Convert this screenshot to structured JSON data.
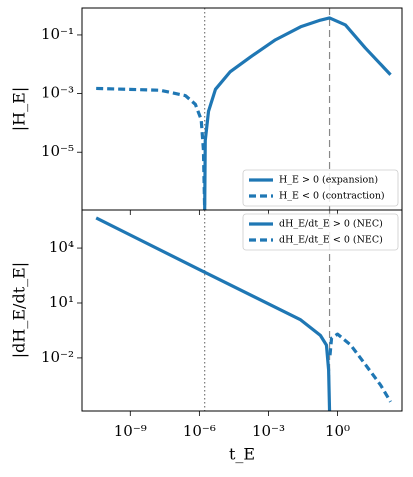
{
  "chart_data": [
    {
      "type": "line",
      "xscale": "log",
      "yscale": "log",
      "ylabel": "|H_E|",
      "xlim": [
        8e-12,
        630
      ],
      "ylim": [
        1.07e-07,
        0.83
      ],
      "xticks": [
        1e-09,
        1e-06,
        0.001,
        1
      ],
      "xtick_labels": false,
      "yticks": [
        {
          "value": 0.1,
          "label": "10⁻¹"
        },
        {
          "value": 0.001,
          "label": "10⁻³"
        },
        {
          "value": 1e-05,
          "label": "10⁻⁵"
        }
      ],
      "vlines": [
        {
          "x": 1.7e-06,
          "style": "dotted",
          "color": "#777777"
        },
        {
          "x": 0.45,
          "style": "dashed",
          "color": "#888888"
        }
      ],
      "legend": "lower right",
      "series": [
        {
          "name": "H_E > 0  (expansion)",
          "color": "#1f77b4",
          "style": "solid",
          "x": [
            1.7e-06,
            1.8e-06,
            2.5e-06,
            5e-06,
            2.2e-05,
            0.00017,
            0.002,
            0.025,
            0.18,
            0.45,
            2.2,
            16,
            200
          ],
          "values": [
            1e-07,
            2.5e-05,
            0.00025,
            0.0014,
            0.0056,
            0.018,
            0.068,
            0.19,
            0.32,
            0.38,
            0.22,
            0.036,
            0.0044
          ]
        },
        {
          "name": "H_E < 0  (contraction)",
          "color": "#1f77b4",
          "style": "dashed",
          "x": [
            3.3e-11,
            2e-08,
            2.5e-07,
            6.7e-07,
            1.2e-06,
            1.5e-06,
            1.7e-06
          ],
          "values": [
            0.0015,
            0.0013,
            0.00085,
            0.00043,
            0.00013,
            1.2e-05,
            1e-07
          ]
        }
      ]
    },
    {
      "type": "line",
      "xscale": "log",
      "yscale": "log",
      "xlabel": "t_E",
      "ylabel": "|dH_E/dt_E|",
      "xlim": [
        8e-12,
        630
      ],
      "ylim": [
        1.26e-05,
        1200000.0
      ],
      "xticks": [
        {
          "value": 1e-09,
          "label": "10⁻⁹"
        },
        {
          "value": 1e-06,
          "label": "10⁻⁶"
        },
        {
          "value": 0.001,
          "label": "10⁻³"
        },
        {
          "value": 1,
          "label": "10⁰"
        }
      ],
      "yticks": [
        {
          "value": 10000,
          "label": "10⁴"
        },
        {
          "value": 10,
          "label": "10¹"
        },
        {
          "value": 0.01,
          "label": "10⁻²"
        }
      ],
      "vlines": [
        {
          "x": 1.7e-06,
          "style": "dotted",
          "color": "#777777"
        },
        {
          "x": 0.45,
          "style": "dashed",
          "color": "#888888"
        }
      ],
      "legend": "upper right",
      "series": [
        {
          "name": "dH_E/dt_E > 0  (NEC)",
          "color": "#1f77b4",
          "style": "solid",
          "x": [
            3.3e-11,
            1.1e-06,
            0.025,
            0.18,
            0.33,
            0.41,
            0.45
          ],
          "values": [
            440000,
            630,
            1.2,
            0.17,
            0.05,
            0.0022,
            1.3e-05
          ]
        },
        {
          "name": "dH_E/dt_E < 0  (NEC)",
          "color": "#1f77b4",
          "style": "dashed",
          "x": [
            0.47,
            0.55,
            1,
            3.7,
            16.5,
            74,
            200
          ],
          "values": [
            0.014,
            0.12,
            0.2,
            0.051,
            0.0042,
            0.00033,
            4e-05
          ]
        }
      ]
    }
  ]
}
